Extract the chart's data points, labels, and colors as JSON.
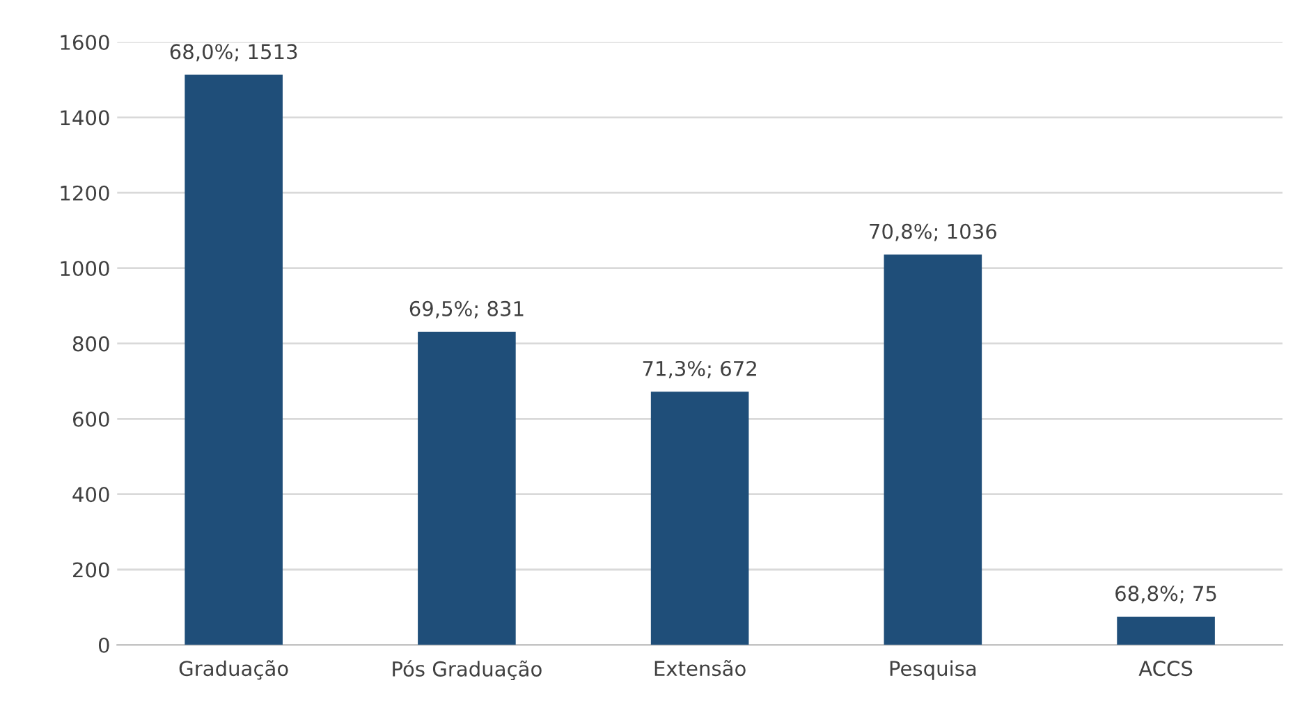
{
  "chart_data": {
    "type": "bar",
    "categories": [
      "Graduação",
      "Pós Graduação",
      "Extensão",
      "Pesquisa",
      "ACCS"
    ],
    "values": [
      1513,
      831,
      672,
      1036,
      75
    ],
    "value_labels": [
      "68,0%; 1513",
      "69,5%; 831",
      "71,3%; 672",
      "70,8%; 1036",
      "68,8%; 75"
    ],
    "color": "#1f4e79",
    "ylim": [
      0,
      1600
    ],
    "yticks": [
      0,
      200,
      400,
      600,
      800,
      1000,
      1200,
      1400,
      1600
    ],
    "grid": "y"
  }
}
